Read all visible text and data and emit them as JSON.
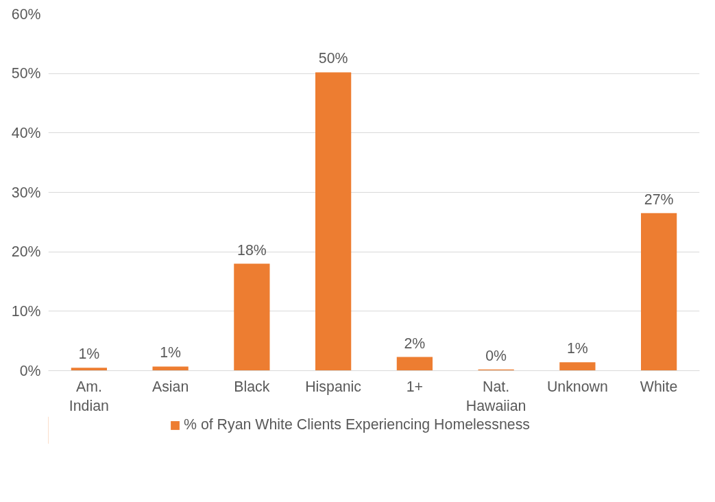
{
  "chart_data": {
    "type": "bar",
    "categories": [
      "Am. Indian",
      "Asian",
      "Black",
      "Hispanic",
      "1+",
      "Nat. Hawaiian",
      "Unknown",
      "White"
    ],
    "series": [
      {
        "name": "% of Ryan White Clients Experiencing Homelessness",
        "color": "#ed7d31",
        "values": [
          0.5,
          0.7,
          18,
          50.2,
          2.3,
          0.2,
          1.4,
          26.5
        ],
        "value_labels": [
          "1%",
          "1%",
          "18%",
          "50%",
          "2%",
          "0%",
          "1%",
          "27%"
        ]
      }
    ],
    "ylim": [
      0,
      60
    ],
    "yticks": [
      {
        "value": 0,
        "label": "0%"
      },
      {
        "value": 10,
        "label": "10%"
      },
      {
        "value": 20,
        "label": "20%"
      },
      {
        "value": 30,
        "label": "30%"
      },
      {
        "value": 40,
        "label": "40%"
      },
      {
        "value": 50,
        "label": "50%"
      },
      {
        "value": 60,
        "label": "60%"
      }
    ],
    "grid": "y",
    "legend": "bottom"
  }
}
